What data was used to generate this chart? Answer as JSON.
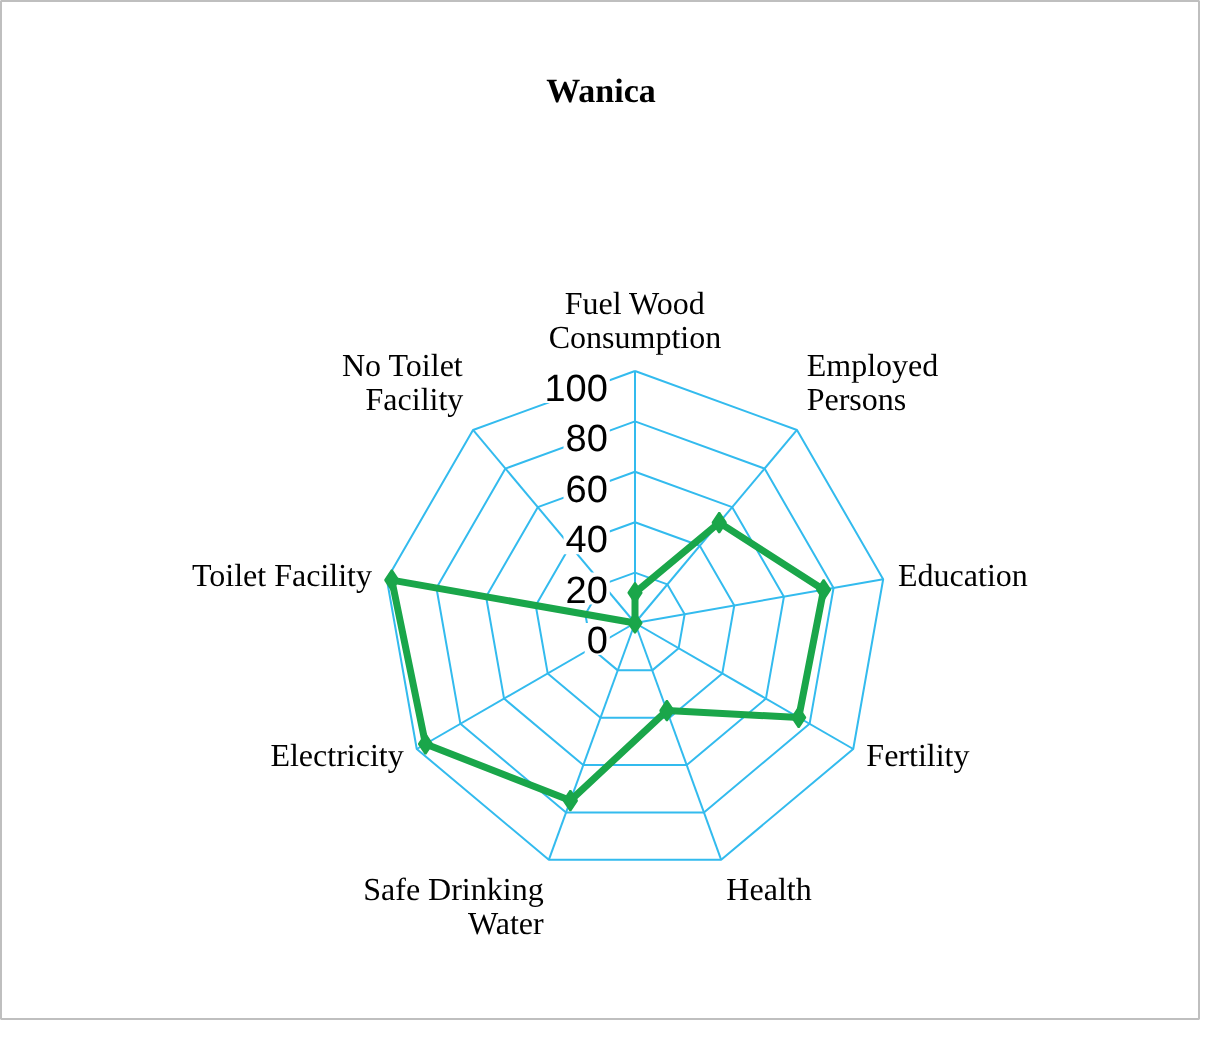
{
  "chart_data": {
    "type": "radar",
    "title": "Wanica",
    "categories": [
      "Fuel Wood Consumption",
      "Employed Persons",
      "Education",
      "Fertility",
      "Health",
      "Safe Drinking Water",
      "Electricity",
      "Toilet Facility",
      "No Toilet Facility"
    ],
    "series": [
      {
        "color": "#1aa64a",
        "values": [
          12,
          52,
          76,
          75,
          37,
          75,
          96,
          98,
          0
        ]
      }
    ],
    "ylim": [
      0,
      100
    ],
    "yticks": [
      0,
      20,
      40,
      60,
      80,
      100
    ],
    "grid": true,
    "marker": "diamond",
    "line_style": "solid"
  }
}
